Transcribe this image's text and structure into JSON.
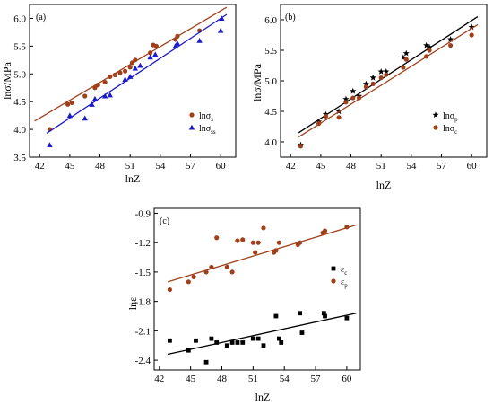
{
  "chart_data": [
    {
      "panel_label": "(a)",
      "type": "scatter",
      "xlabel": "lnZ",
      "ylabel": "lnσ/MPa",
      "xlim": [
        41,
        61.5
      ],
      "ylim": [
        3.5,
        6.25
      ],
      "xticks": [
        "42",
        "45",
        "48",
        "51",
        "54",
        "57",
        "60"
      ],
      "yticks": [
        "3.5",
        "4.0",
        "4.5",
        "5.0",
        "5.5",
        "6.0"
      ],
      "legend": {
        "placement": "bottom-right"
      },
      "series": [
        {
          "name": "lnσs",
          "name_base": "lnσ",
          "name_sub": "s",
          "color": "#a0401b",
          "marker": "circle",
          "points": [
            [
              43.0,
              4.0
            ],
            [
              44.8,
              4.45
            ],
            [
              45.2,
              4.48
            ],
            [
              46.5,
              4.6
            ],
            [
              47.5,
              4.75
            ],
            [
              47.8,
              4.8
            ],
            [
              48.5,
              4.85
            ],
            [
              49.0,
              4.95
            ],
            [
              49.5,
              4.98
            ],
            [
              50.0,
              5.02
            ],
            [
              50.5,
              5.05
            ],
            [
              51.0,
              5.12
            ],
            [
              51.2,
              5.2
            ],
            [
              51.5,
              5.25
            ],
            [
              53.0,
              5.38
            ],
            [
              53.3,
              5.52
            ],
            [
              53.6,
              5.5
            ],
            [
              55.5,
              5.62
            ],
            [
              55.7,
              5.68
            ],
            [
              57.9,
              5.78
            ]
          ],
          "fit": [
            [
              41.5,
              4.15
            ],
            [
              60.6,
              6.2
            ]
          ]
        },
        {
          "name": "lnσss",
          "name_base": "lnσ",
          "name_sub": "ss",
          "color": "#1a1acc",
          "marker": "triangle",
          "points": [
            [
              43.0,
              3.72
            ],
            [
              45.0,
              4.25
            ],
            [
              46.5,
              4.2
            ],
            [
              47.2,
              4.45
            ],
            [
              47.5,
              4.55
            ],
            [
              48.5,
              4.6
            ],
            [
              49.0,
              4.62
            ],
            [
              50.5,
              4.9
            ],
            [
              51.0,
              4.95
            ],
            [
              51.5,
              5.1
            ],
            [
              52.0,
              5.15
            ],
            [
              53.0,
              5.3
            ],
            [
              53.5,
              5.35
            ],
            [
              55.5,
              5.5
            ],
            [
              55.7,
              5.55
            ],
            [
              57.9,
              5.6
            ],
            [
              60.0,
              5.78
            ],
            [
              60.1,
              6.0
            ]
          ],
          "fit": [
            [
              42.7,
              3.93
            ],
            [
              60.6,
              6.07
            ]
          ]
        }
      ]
    },
    {
      "panel_label": "(b)",
      "type": "scatter",
      "xlabel": "lnZ",
      "ylabel": "lnσ/MPa",
      "xlim": [
        41,
        61.5
      ],
      "ylim": [
        3.75,
        6.25
      ],
      "xticks": [
        "42",
        "45",
        "48",
        "51",
        "54",
        "57",
        "60"
      ],
      "yticks": [
        "4.0",
        "4.5",
        "5.0",
        "5.5",
        "6.0"
      ],
      "legend": {
        "placement": "right"
      },
      "series": [
        {
          "name": "lnσp",
          "name_base": "lnσ",
          "name_sub": "p",
          "color": "#000000",
          "marker": "star",
          "points": [
            [
              43.0,
              3.95
            ],
            [
              44.8,
              4.33
            ],
            [
              45.5,
              4.45
            ],
            [
              46.8,
              4.5
            ],
            [
              47.5,
              4.7
            ],
            [
              48.2,
              4.83
            ],
            [
              48.8,
              4.75
            ],
            [
              49.5,
              4.95
            ],
            [
              50.2,
              5.05
            ],
            [
              51.0,
              5.15
            ],
            [
              51.5,
              5.15
            ],
            [
              53.2,
              5.38
            ],
            [
              53.5,
              5.45
            ],
            [
              55.5,
              5.58
            ],
            [
              55.8,
              5.55
            ],
            [
              57.9,
              5.68
            ],
            [
              60.0,
              5.88
            ]
          ],
          "fit": [
            [
              42.8,
              4.15
            ],
            [
              60.6,
              6.05
            ]
          ]
        },
        {
          "name": "lnσc",
          "name_base": "lnσ",
          "name_sub": "c",
          "color": "#a0401b",
          "marker": "circle",
          "points": [
            [
              43.0,
              3.93
            ],
            [
              44.8,
              4.3
            ],
            [
              45.5,
              4.42
            ],
            [
              46.8,
              4.4
            ],
            [
              47.5,
              4.65
            ],
            [
              48.2,
              4.72
            ],
            [
              48.8,
              4.72
            ],
            [
              49.5,
              4.9
            ],
            [
              50.2,
              4.95
            ],
            [
              51.0,
              5.05
            ],
            [
              51.5,
              5.1
            ],
            [
              53.2,
              5.22
            ],
            [
              53.5,
              5.35
            ],
            [
              55.5,
              5.4
            ],
            [
              55.8,
              5.5
            ],
            [
              57.9,
              5.58
            ],
            [
              60.0,
              5.75
            ]
          ],
          "fit": [
            [
              42.8,
              4.08
            ],
            [
              60.6,
              5.92
            ]
          ]
        }
      ]
    },
    {
      "panel_label": "(c)",
      "type": "scatter",
      "xlabel": "lnZ",
      "ylabel": "lnε",
      "xlim": [
        41.5,
        61.3
      ],
      "ylim": [
        -2.5,
        -0.85
      ],
      "xticks": [
        "42",
        "45",
        "48",
        "51",
        "54",
        "57",
        "60"
      ],
      "yticks": [
        "-0.9",
        "-1.2",
        "-1.5",
        "-1.8",
        "-2.1",
        "-2.4"
      ],
      "legend": {
        "placement": "right"
      },
      "series": [
        {
          "name": "εc",
          "name_base": "ε",
          "name_sub": "c",
          "color": "#000000",
          "marker": "square",
          "points": [
            [
              43.0,
              -2.2
            ],
            [
              44.8,
              -2.3
            ],
            [
              45.5,
              -2.2
            ],
            [
              46.5,
              -2.42
            ],
            [
              47.0,
              -2.18
            ],
            [
              47.5,
              -2.22
            ],
            [
              48.5,
              -2.25
            ],
            [
              49.0,
              -2.22
            ],
            [
              49.5,
              -2.22
            ],
            [
              50.0,
              -2.22
            ],
            [
              51.0,
              -2.18
            ],
            [
              51.5,
              -2.18
            ],
            [
              52.0,
              -2.25
            ],
            [
              53.2,
              -1.95
            ],
            [
              53.5,
              -2.18
            ],
            [
              53.7,
              -2.22
            ],
            [
              55.5,
              -1.92
            ],
            [
              55.7,
              -2.12
            ],
            [
              57.8,
              -1.92
            ],
            [
              57.9,
              -1.95
            ],
            [
              60.0,
              -1.97
            ]
          ],
          "fit": [
            [
              42.8,
              -2.34
            ],
            [
              60.9,
              -1.92
            ]
          ]
        },
        {
          "name": "εp",
          "name_base": "ε",
          "name_sub": "p",
          "color": "#a0401b",
          "marker": "circle",
          "points": [
            [
              43.0,
              -1.68
            ],
            [
              44.8,
              -1.6
            ],
            [
              45.3,
              -1.55
            ],
            [
              46.5,
              -1.5
            ],
            [
              47.0,
              -1.45
            ],
            [
              47.5,
              -1.15
            ],
            [
              48.5,
              -1.45
            ],
            [
              49.0,
              -1.5
            ],
            [
              49.5,
              -1.18
            ],
            [
              50.0,
              -1.17
            ],
            [
              51.0,
              -1.2
            ],
            [
              51.2,
              -1.3
            ],
            [
              51.5,
              -1.2
            ],
            [
              52.0,
              -1.05
            ],
            [
              53.0,
              -1.3
            ],
            [
              53.2,
              -1.28
            ],
            [
              53.5,
              -1.2
            ],
            [
              55.3,
              -1.22
            ],
            [
              55.5,
              -1.2
            ],
            [
              57.7,
              -1.1
            ],
            [
              57.9,
              -1.08
            ],
            [
              60.0,
              -1.04
            ]
          ],
          "fit": [
            [
              42.8,
              -1.6
            ],
            [
              60.9,
              -1.02
            ]
          ]
        }
      ]
    }
  ]
}
